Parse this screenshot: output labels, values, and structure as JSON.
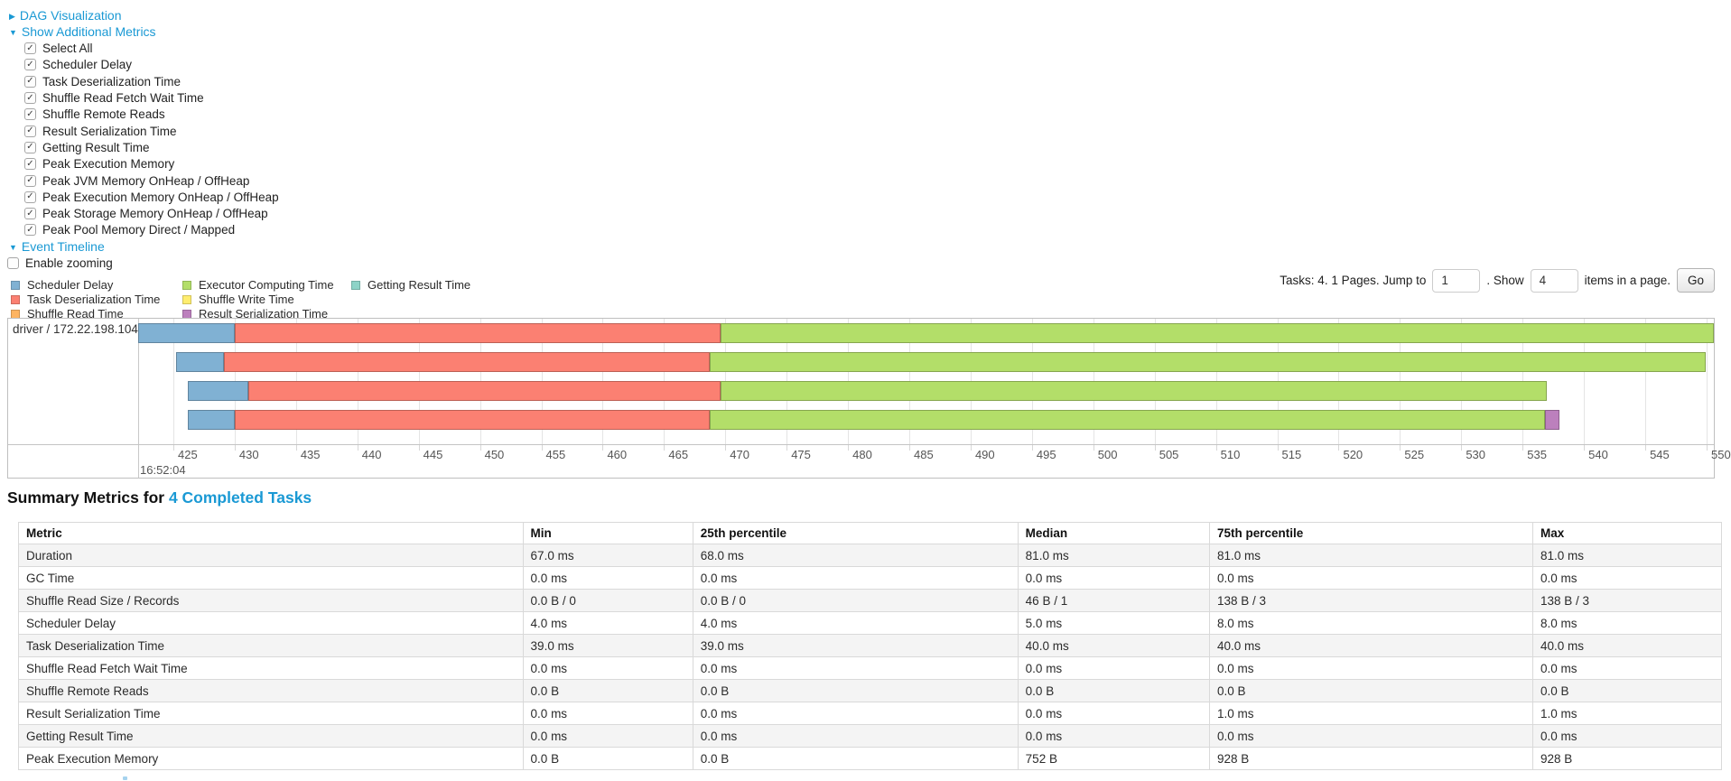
{
  "controls": {
    "dag": {
      "label": "DAG Visualization",
      "arrow": "▶",
      "expanded": false
    },
    "metrics_toggle": {
      "label": "Show Additional Metrics",
      "arrow": "▼",
      "expanded": true
    },
    "metric_checkboxes": [
      {
        "label": "Select All",
        "checked": true
      },
      {
        "label": "Scheduler Delay",
        "checked": true
      },
      {
        "label": "Task Deserialization Time",
        "checked": true
      },
      {
        "label": "Shuffle Read Fetch Wait Time",
        "checked": true
      },
      {
        "label": "Shuffle Remote Reads",
        "checked": true
      },
      {
        "label": "Result Serialization Time",
        "checked": true
      },
      {
        "label": "Getting Result Time",
        "checked": true
      },
      {
        "label": "Peak Execution Memory",
        "checked": true
      },
      {
        "label": "Peak JVM Memory OnHeap / OffHeap",
        "checked": true
      },
      {
        "label": "Peak Execution Memory OnHeap / OffHeap",
        "checked": true
      },
      {
        "label": "Peak Storage Memory OnHeap / OffHeap",
        "checked": true
      },
      {
        "label": "Peak Pool Memory Direct / Mapped",
        "checked": true
      }
    ],
    "event_timeline": {
      "label": "Event Timeline",
      "arrow": "▼",
      "expanded": true
    },
    "enable_zooming": {
      "label": "Enable zooming",
      "checked": false
    }
  },
  "legend": {
    "items": [
      {
        "label": "Scheduler Delay",
        "color": "#80B1D3",
        "type": "scheduler-delay"
      },
      {
        "label": "Task Deserialization Time",
        "color": "#FB8072",
        "type": "task-deserialization"
      },
      {
        "label": "Shuffle Read Time",
        "color": "#FDB462",
        "type": "shuffle-read"
      },
      {
        "label": "Executor Computing Time",
        "color": "#B3DE69",
        "type": "executor-computing"
      },
      {
        "label": "Shuffle Write Time",
        "color": "#FFED6F",
        "type": "shuffle-write"
      },
      {
        "label": "Result Serialization Time",
        "color": "#BC80BD",
        "type": "result-serialization"
      },
      {
        "label": "Getting Result Time",
        "color": "#8DD3C7",
        "type": "getting-result"
      }
    ]
  },
  "pagination": {
    "prefix": "Tasks: 4. 1 Pages. Jump to",
    "jump_value": "1",
    "mid": ". Show",
    "show_value": "4",
    "suffix": "items in a page.",
    "go_label": "Go"
  },
  "timeline": {
    "executor_label": "driver / 172.22.198.104",
    "axis": {
      "ticks": [
        425,
        430,
        435,
        440,
        445,
        450,
        455,
        460,
        465,
        470,
        475,
        480,
        485,
        490,
        495,
        500,
        505,
        510,
        515,
        520,
        525,
        530,
        535,
        540,
        545,
        550
      ],
      "start_label": "16:52:04",
      "unit": "ms within second 16:52:04"
    },
    "tasks": [
      {
        "segments": [
          {
            "type": "scheduler-delay",
            "start": 422.1,
            "end": 430.0
          },
          {
            "type": "task-deserialization",
            "start": 430.0,
            "end": 469.6
          },
          {
            "type": "executor-computing",
            "start": 469.6,
            "end": 550.6
          }
        ]
      },
      {
        "segments": [
          {
            "type": "scheduler-delay",
            "start": 425.2,
            "end": 429.1
          },
          {
            "type": "task-deserialization",
            "start": 429.1,
            "end": 468.7
          },
          {
            "type": "executor-computing",
            "start": 468.7,
            "end": 549.9
          }
        ]
      },
      {
        "segments": [
          {
            "type": "scheduler-delay",
            "start": 426.2,
            "end": 431.1
          },
          {
            "type": "task-deserialization",
            "start": 431.1,
            "end": 469.6
          },
          {
            "type": "executor-computing",
            "start": 469.6,
            "end": 537.0
          }
        ]
      },
      {
        "segments": [
          {
            "type": "scheduler-delay",
            "start": 426.2,
            "end": 430.0
          },
          {
            "type": "task-deserialization",
            "start": 430.0,
            "end": 468.7
          },
          {
            "type": "executor-computing",
            "start": 468.7,
            "end": 536.8
          },
          {
            "type": "result-serialization",
            "start": 536.8,
            "end": 538.0
          }
        ]
      }
    ]
  },
  "summary": {
    "title_prefix": "Summary Metrics for ",
    "title_link": "4 Completed Tasks",
    "columns": [
      "Metric",
      "Min",
      "25th percentile",
      "Median",
      "75th percentile",
      "Max"
    ],
    "rows": [
      [
        "Duration",
        "67.0 ms",
        "68.0 ms",
        "81.0 ms",
        "81.0 ms",
        "81.0 ms"
      ],
      [
        "GC Time",
        "0.0 ms",
        "0.0 ms",
        "0.0 ms",
        "0.0 ms",
        "0.0 ms"
      ],
      [
        "Shuffle Read Size / Records",
        "0.0 B / 0",
        "0.0 B / 0",
        "46 B / 1",
        "138 B / 3",
        "138 B / 3"
      ],
      [
        "Scheduler Delay",
        "4.0 ms",
        "4.0 ms",
        "5.0 ms",
        "8.0 ms",
        "8.0 ms"
      ],
      [
        "Task Deserialization Time",
        "39.0 ms",
        "39.0 ms",
        "40.0 ms",
        "40.0 ms",
        "40.0 ms"
      ],
      [
        "Shuffle Read Fetch Wait Time",
        "0.0 ms",
        "0.0 ms",
        "0.0 ms",
        "0.0 ms",
        "0.0 ms"
      ],
      [
        "Shuffle Remote Reads",
        "0.0 B",
        "0.0 B",
        "0.0 B",
        "0.0 B",
        "0.0 B"
      ],
      [
        "Result Serialization Time",
        "0.0 ms",
        "0.0 ms",
        "0.0 ms",
        "1.0 ms",
        "1.0 ms"
      ],
      [
        "Getting Result Time",
        "0.0 ms",
        "0.0 ms",
        "0.0 ms",
        "0.0 ms",
        "0.0 ms"
      ],
      [
        "Peak Execution Memory",
        "0.0 B",
        "0.0 B",
        "752 B",
        "928 B",
        "928 B"
      ]
    ]
  }
}
